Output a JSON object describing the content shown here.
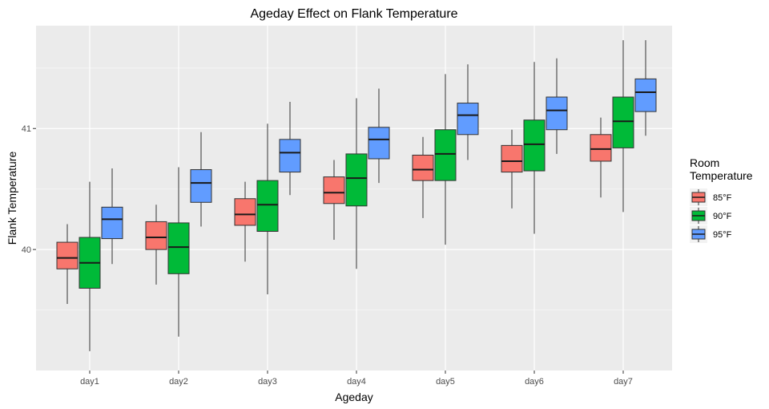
{
  "chart_data": {
    "type": "box",
    "title": "Ageday Effect on Flank Temperature",
    "xlabel": "Ageday",
    "ylabel": "Flank Temperature",
    "categories": [
      "day1",
      "day2",
      "day3",
      "day4",
      "day5",
      "day6",
      "day7"
    ],
    "ylim": [
      39.0,
      41.85
    ],
    "yticks": [
      40,
      41
    ],
    "grid": true,
    "legend": {
      "title": "Room Temperature",
      "title_lines": [
        "Room",
        "Temperature"
      ],
      "position": "right"
    },
    "series": [
      {
        "name": "85°F",
        "color": "#F8766D",
        "boxes": [
          {
            "min": 39.55,
            "q1": 39.84,
            "median": 39.93,
            "q3": 40.06,
            "max": 40.21
          },
          {
            "min": 39.71,
            "q1": 40.0,
            "median": 40.1,
            "q3": 40.23,
            "max": 40.37
          },
          {
            "min": 39.9,
            "q1": 40.2,
            "median": 40.29,
            "q3": 40.42,
            "max": 40.56
          },
          {
            "min": 40.08,
            "q1": 40.38,
            "median": 40.47,
            "q3": 40.6,
            "max": 40.74
          },
          {
            "min": 40.26,
            "q1": 40.57,
            "median": 40.66,
            "q3": 40.78,
            "max": 40.93
          },
          {
            "min": 40.34,
            "q1": 40.64,
            "median": 40.73,
            "q3": 40.86,
            "max": 40.99
          },
          {
            "min": 40.43,
            "q1": 40.73,
            "median": 40.83,
            "q3": 40.95,
            "max": 41.09
          }
        ]
      },
      {
        "name": "90°F",
        "color": "#00BA38",
        "boxes": [
          {
            "min": 39.16,
            "q1": 39.68,
            "median": 39.89,
            "q3": 40.1,
            "max": 40.56
          },
          {
            "min": 39.28,
            "q1": 39.8,
            "median": 40.02,
            "q3": 40.22,
            "max": 40.68
          },
          {
            "min": 39.63,
            "q1": 40.15,
            "median": 40.37,
            "q3": 40.57,
            "max": 41.04
          },
          {
            "min": 39.84,
            "q1": 40.36,
            "median": 40.59,
            "q3": 40.79,
            "max": 41.25
          },
          {
            "min": 40.04,
            "q1": 40.57,
            "median": 40.79,
            "q3": 40.99,
            "max": 41.45
          },
          {
            "min": 40.13,
            "q1": 40.65,
            "median": 40.87,
            "q3": 41.07,
            "max": 41.55
          },
          {
            "min": 40.31,
            "q1": 40.84,
            "median": 41.06,
            "q3": 41.26,
            "max": 41.73
          }
        ]
      },
      {
        "name": "95°F",
        "color": "#619CFF",
        "boxes": [
          {
            "min": 39.88,
            "q1": 40.09,
            "median": 40.25,
            "q3": 40.35,
            "max": 40.67
          },
          {
            "min": 40.19,
            "q1": 40.39,
            "median": 40.55,
            "q3": 40.66,
            "max": 40.97
          },
          {
            "min": 40.45,
            "q1": 40.64,
            "median": 40.8,
            "q3": 40.91,
            "max": 41.22
          },
          {
            "min": 40.55,
            "q1": 40.75,
            "median": 40.91,
            "q3": 41.01,
            "max": 41.33
          },
          {
            "min": 40.74,
            "q1": 40.95,
            "median": 41.11,
            "q3": 41.21,
            "max": 41.53
          },
          {
            "min": 40.79,
            "q1": 40.99,
            "median": 41.15,
            "q3": 41.26,
            "max": 41.58
          },
          {
            "min": 40.94,
            "q1": 41.14,
            "median": 41.3,
            "q3": 41.41,
            "max": 41.73
          }
        ]
      }
    ]
  }
}
